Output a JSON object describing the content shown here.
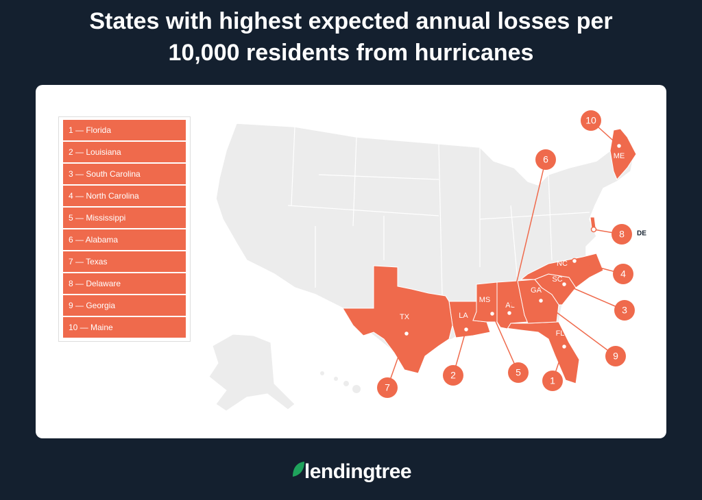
{
  "title": "States with highest expected annual losses per 10,000 residents from hurricanes",
  "ranking": [
    "1 — Florida",
    "2 — Louisiana",
    "3 — South Carolina",
    "4 — North Carolina",
    "5 — Mississippi",
    "6 — Alabama",
    "7 — Texas",
    "8 — Delaware",
    "9 — Georgia",
    "10 — Maine"
  ],
  "map": {
    "states": [
      {
        "abbr": "FL",
        "callout": "1"
      },
      {
        "abbr": "LA",
        "callout": "2"
      },
      {
        "abbr": "SC",
        "callout": "3"
      },
      {
        "abbr": "NC",
        "callout": "4"
      },
      {
        "abbr": "MS",
        "callout": "5"
      },
      {
        "abbr": "AL",
        "callout": "6"
      },
      {
        "abbr": "TX",
        "callout": "7"
      },
      {
        "abbr": "DE",
        "callout": "8"
      },
      {
        "abbr": "GA",
        "callout": "9"
      },
      {
        "abbr": "ME",
        "callout": "10"
      }
    ]
  },
  "logo": "lendingtree"
}
